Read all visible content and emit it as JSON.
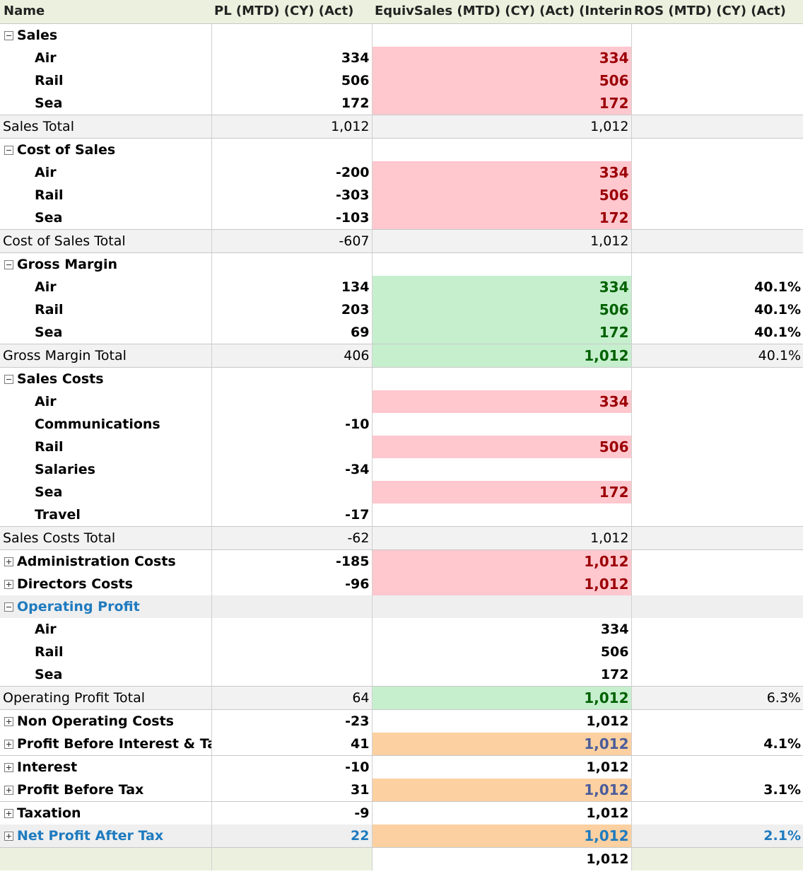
{
  "headers": {
    "name": "Name",
    "pl": "PL (MTD) (CY) (Act)",
    "equiv": "EquivSales (MTD) (CY) (Act) (Interim)",
    "ros": "ROS (MTD) (CY) (Act)"
  },
  "colors": {
    "red_fill": "#ffc7ce",
    "red_text": "#9c0006",
    "green_fill": "#c6efce",
    "green_text": "#006100",
    "orange_fill": "#fcd0a1",
    "highlight_text": "#1f7bbf",
    "header_fill": "#ebf1de"
  },
  "rows": [
    {
      "name": "Sales",
      "pl": "",
      "equiv": "",
      "ros": ""
    },
    {
      "name": "Air",
      "pl": "334",
      "equiv": "334",
      "ros": ""
    },
    {
      "name": "Rail",
      "pl": "506",
      "equiv": "506",
      "ros": ""
    },
    {
      "name": "Sea",
      "pl": "172",
      "equiv": "172",
      "ros": ""
    },
    {
      "name": "Sales Total",
      "pl": "1,012",
      "equiv": "1,012",
      "ros": ""
    },
    {
      "name": "Cost of Sales",
      "pl": "",
      "equiv": "",
      "ros": ""
    },
    {
      "name": "Air",
      "pl": "-200",
      "equiv": "334",
      "ros": ""
    },
    {
      "name": "Rail",
      "pl": "-303",
      "equiv": "506",
      "ros": ""
    },
    {
      "name": "Sea",
      "pl": "-103",
      "equiv": "172",
      "ros": ""
    },
    {
      "name": "Cost of Sales Total",
      "pl": "-607",
      "equiv": "1,012",
      "ros": ""
    },
    {
      "name": "Gross Margin",
      "pl": "",
      "equiv": "",
      "ros": ""
    },
    {
      "name": "Air",
      "pl": "134",
      "equiv": "334",
      "ros": "40.1%"
    },
    {
      "name": "Rail",
      "pl": "203",
      "equiv": "506",
      "ros": "40.1%"
    },
    {
      "name": "Sea",
      "pl": "69",
      "equiv": "172",
      "ros": "40.1%"
    },
    {
      "name": "Gross Margin Total",
      "pl": "406",
      "equiv": "1,012",
      "ros": "40.1%"
    },
    {
      "name": "Sales Costs",
      "pl": "",
      "equiv": "",
      "ros": ""
    },
    {
      "name": "Air",
      "pl": "",
      "equiv": "334",
      "ros": ""
    },
    {
      "name": "Communications",
      "pl": "-10",
      "equiv": "",
      "ros": ""
    },
    {
      "name": "Rail",
      "pl": "",
      "equiv": "506",
      "ros": ""
    },
    {
      "name": "Salaries",
      "pl": "-34",
      "equiv": "",
      "ros": ""
    },
    {
      "name": "Sea",
      "pl": "",
      "equiv": "172",
      "ros": ""
    },
    {
      "name": "Travel",
      "pl": "-17",
      "equiv": "",
      "ros": ""
    },
    {
      "name": "Sales Costs Total",
      "pl": "-62",
      "equiv": "1,012",
      "ros": ""
    },
    {
      "name": "Administration Costs",
      "pl": "-185",
      "equiv": "1,012",
      "ros": ""
    },
    {
      "name": "Directors Costs",
      "pl": "-96",
      "equiv": "1,012",
      "ros": ""
    },
    {
      "name": "Operating Profit",
      "pl": "",
      "equiv": "",
      "ros": ""
    },
    {
      "name": "Air",
      "pl": "",
      "equiv": "334",
      "ros": ""
    },
    {
      "name": "Rail",
      "pl": "",
      "equiv": "506",
      "ros": ""
    },
    {
      "name": "Sea",
      "pl": "",
      "equiv": "172",
      "ros": ""
    },
    {
      "name": "Operating Profit Total",
      "pl": "64",
      "equiv": "1,012",
      "ros": "6.3%"
    },
    {
      "name": "Non Operating Costs",
      "pl": "-23",
      "equiv": "1,012",
      "ros": ""
    },
    {
      "name": "Profit Before Interest & Tax",
      "pl": "41",
      "equiv": "1,012",
      "ros": "4.1%"
    },
    {
      "name": "Interest",
      "pl": "-10",
      "equiv": "1,012",
      "ros": ""
    },
    {
      "name": "Profit Before Tax",
      "pl": "31",
      "equiv": "1,012",
      "ros": "3.1%"
    },
    {
      "name": "Taxation",
      "pl": "-9",
      "equiv": "1,012",
      "ros": ""
    },
    {
      "name": "Net Profit After Tax",
      "pl": "22",
      "equiv": "1,012",
      "ros": "2.1%"
    },
    {
      "name": "",
      "pl": "",
      "equiv": "1,012",
      "ros": ""
    }
  ]
}
